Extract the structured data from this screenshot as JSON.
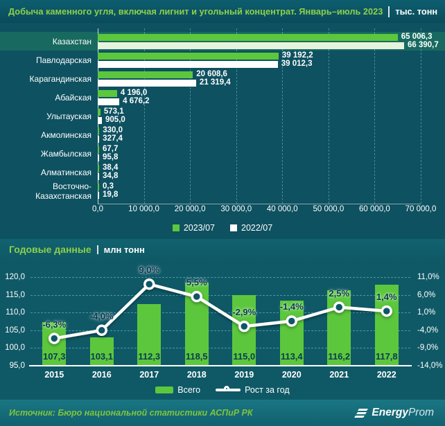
{
  "header": {
    "title": "Добыча каменного угля, включая лигнит и угольный концентрат. Январь–июль 2023",
    "units": "тыс. тонн"
  },
  "annual": {
    "section_title": "Годовые данные",
    "units": "млн тонн"
  },
  "footer": {
    "source": "Источник: Бюро национальной статистики АСПиР РК",
    "logo_bold": "Energy",
    "logo_light": "Prom"
  },
  "colors": {
    "green_bar": "#5cc73d",
    "pale_green_bar": "#e6f3dd",
    "white_bar": "#ffffff",
    "highlight_band": "#186a60",
    "title_green": "#8ed04a",
    "dark_label": "#0c3a52"
  },
  "chart_data": [
    {
      "type": "bar",
      "orientation": "horizontal",
      "title": "Добыча каменного угля, включая лигнит и угольный концентрат. Январь–июль 2023 | тыс. тонн",
      "categories": [
        "Казахстан",
        "Павлодарская",
        "Карагандинская",
        "Абайская",
        "Улытауская",
        "Акмолинская",
        "Жамбылская",
        "Алматинская",
        "Восточно-Казахстанская"
      ],
      "series": [
        {
          "name": "2023/07",
          "color": "#5cc73d",
          "values": [
            65006.3,
            39192.2,
            20608.6,
            4196.0,
            573.1,
            330.0,
            67.7,
            38.4,
            0.3
          ],
          "labels": [
            "65 006,3",
            "39 192,2",
            "20 608,6",
            "4 196,0",
            "573,1",
            "330,0",
            "67,7",
            "38,4",
            "0,3"
          ]
        },
        {
          "name": "2022/07",
          "color": "#ffffff",
          "values": [
            66390.7,
            39012.3,
            21319.4,
            4676.2,
            905.0,
            327.4,
            95.8,
            34.8,
            19.8
          ],
          "labels": [
            "66 390,7",
            "39 012,3",
            "21 319,4",
            "4 676,2",
            "905,0",
            "327,4",
            "95,8",
            "34,8",
            "19,8"
          ]
        }
      ],
      "xlim": [
        0,
        70000
      ],
      "x_tick_values": [
        0,
        10000,
        20000,
        30000,
        40000,
        50000,
        60000,
        70000
      ],
      "x_tick_labels": [
        "0,0",
        "10 000,0",
        "20 000,0",
        "30 000,0",
        "40 000,0",
        "50 000,0",
        "60 000,0",
        "70 000,0"
      ],
      "highlighted_category": "Казахстан",
      "legend_position": "bottom"
    },
    {
      "type": "bar+line",
      "title": "Годовые данные | млн тонн",
      "categories": [
        "2015",
        "2016",
        "2017",
        "2018",
        "2019",
        "2020",
        "2021",
        "2022"
      ],
      "bar_series": {
        "name": "Всего",
        "color": "#5cc73d",
        "values": [
          107.3,
          103.1,
          112.3,
          118.5,
          115.0,
          113.4,
          116.2,
          117.8
        ],
        "labels": [
          "107,3",
          "103,1",
          "112,3",
          "118,5",
          "115,0",
          "113,4",
          "116,2",
          "117,8"
        ]
      },
      "line_series": {
        "name": "Рост за год",
        "color": "#ffffff",
        "values": [
          -6.3,
          -4.0,
          9.0,
          5.5,
          -2.9,
          -1.4,
          2.5,
          1.4
        ],
        "labels": [
          "-6,3%",
          "-4,0%",
          "9,0%",
          "5,5%",
          "-2,9%",
          "-1,4%",
          "2,5%",
          "1,4%"
        ]
      },
      "left_axis": {
        "min": 95,
        "max": 120,
        "tick_labels": [
          "95,0",
          "100,0",
          "105,0",
          "110,0",
          "115,0",
          "120,0"
        ]
      },
      "right_axis": {
        "min": -14,
        "max": 11,
        "tick_labels": [
          "-14,0%",
          "-9,0%",
          "-4,0%",
          "1,0%",
          "6,0%",
          "11,0%"
        ]
      },
      "grid": "horizontal-dashed",
      "legend_position": "bottom"
    }
  ]
}
